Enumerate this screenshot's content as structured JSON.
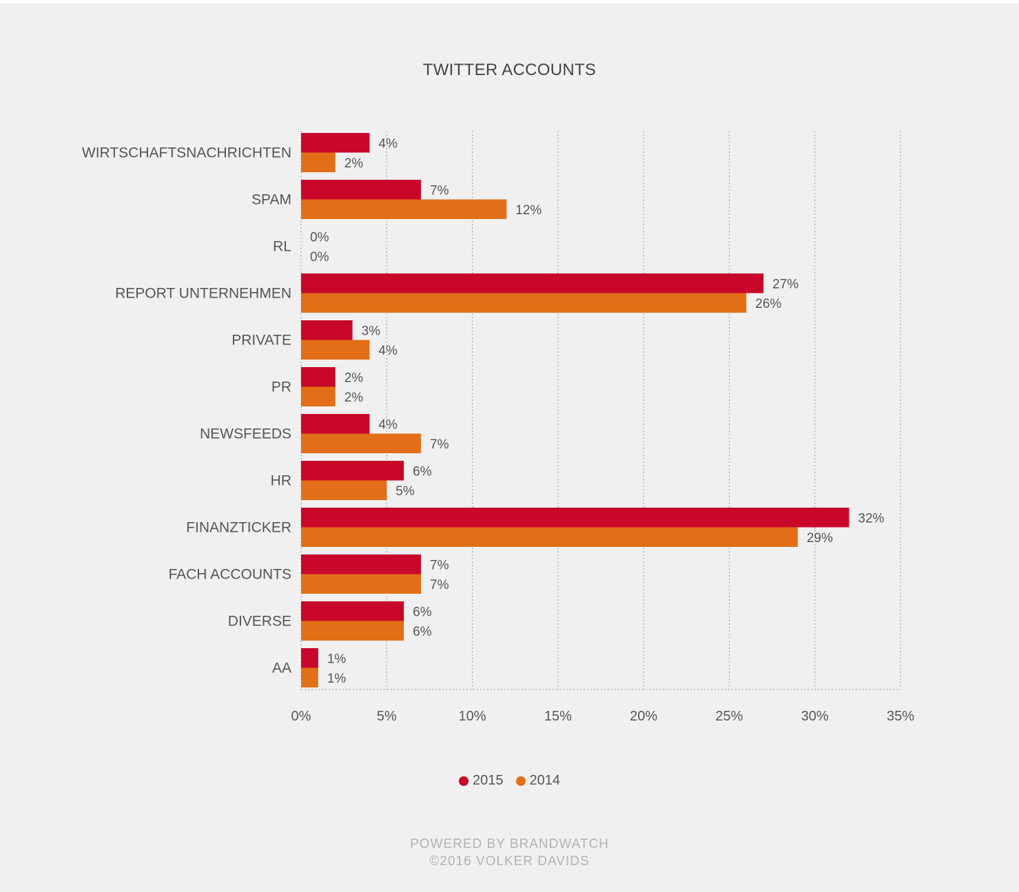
{
  "chart_data": {
    "type": "bar",
    "orientation": "horizontal",
    "title": "TWITTER ACCOUNTS",
    "categories": [
      "WIRTSCHAFTSNACHRICHTEN",
      "SPAM",
      "RL",
      "REPORT UNTERNEHMEN",
      "PRIVATE",
      "PR",
      "NEWSFEEDS",
      "HR",
      "FINANZTICKER",
      "FACH ACCOUNTS",
      "DIVERSE",
      "AA"
    ],
    "series": [
      {
        "name": "2015",
        "color": "#c8072a",
        "values": [
          4,
          7,
          0,
          27,
          3,
          2,
          4,
          6,
          32,
          7,
          6,
          1
        ],
        "labels": [
          "4%",
          "7%",
          "0%",
          "27%",
          "3%",
          "2%",
          "4%",
          "6%",
          "32%",
          "7%",
          "6%",
          "1%"
        ]
      },
      {
        "name": "2014",
        "color": "#e26f17",
        "values": [
          2,
          12,
          0,
          26,
          4,
          2,
          7,
          5,
          29,
          7,
          6,
          1
        ],
        "labels": [
          "2%",
          "12%",
          "0%",
          "26%",
          "4%",
          "2%",
          "7%",
          "5%",
          "29%",
          "7%",
          "6%",
          "1%"
        ]
      }
    ],
    "xlim": [
      0,
      35
    ],
    "xticks": [
      0,
      5,
      10,
      15,
      20,
      25,
      30,
      35
    ],
    "xtick_labels": [
      "0%",
      "5%",
      "10%",
      "15%",
      "20%",
      "25%",
      "30%",
      "35%"
    ],
    "grid": true,
    "legend_position": "bottom"
  },
  "footer": {
    "line1": "POWERED BY BRANDWATCH",
    "line2": "©2016 VOLKER DAVIDS"
  }
}
